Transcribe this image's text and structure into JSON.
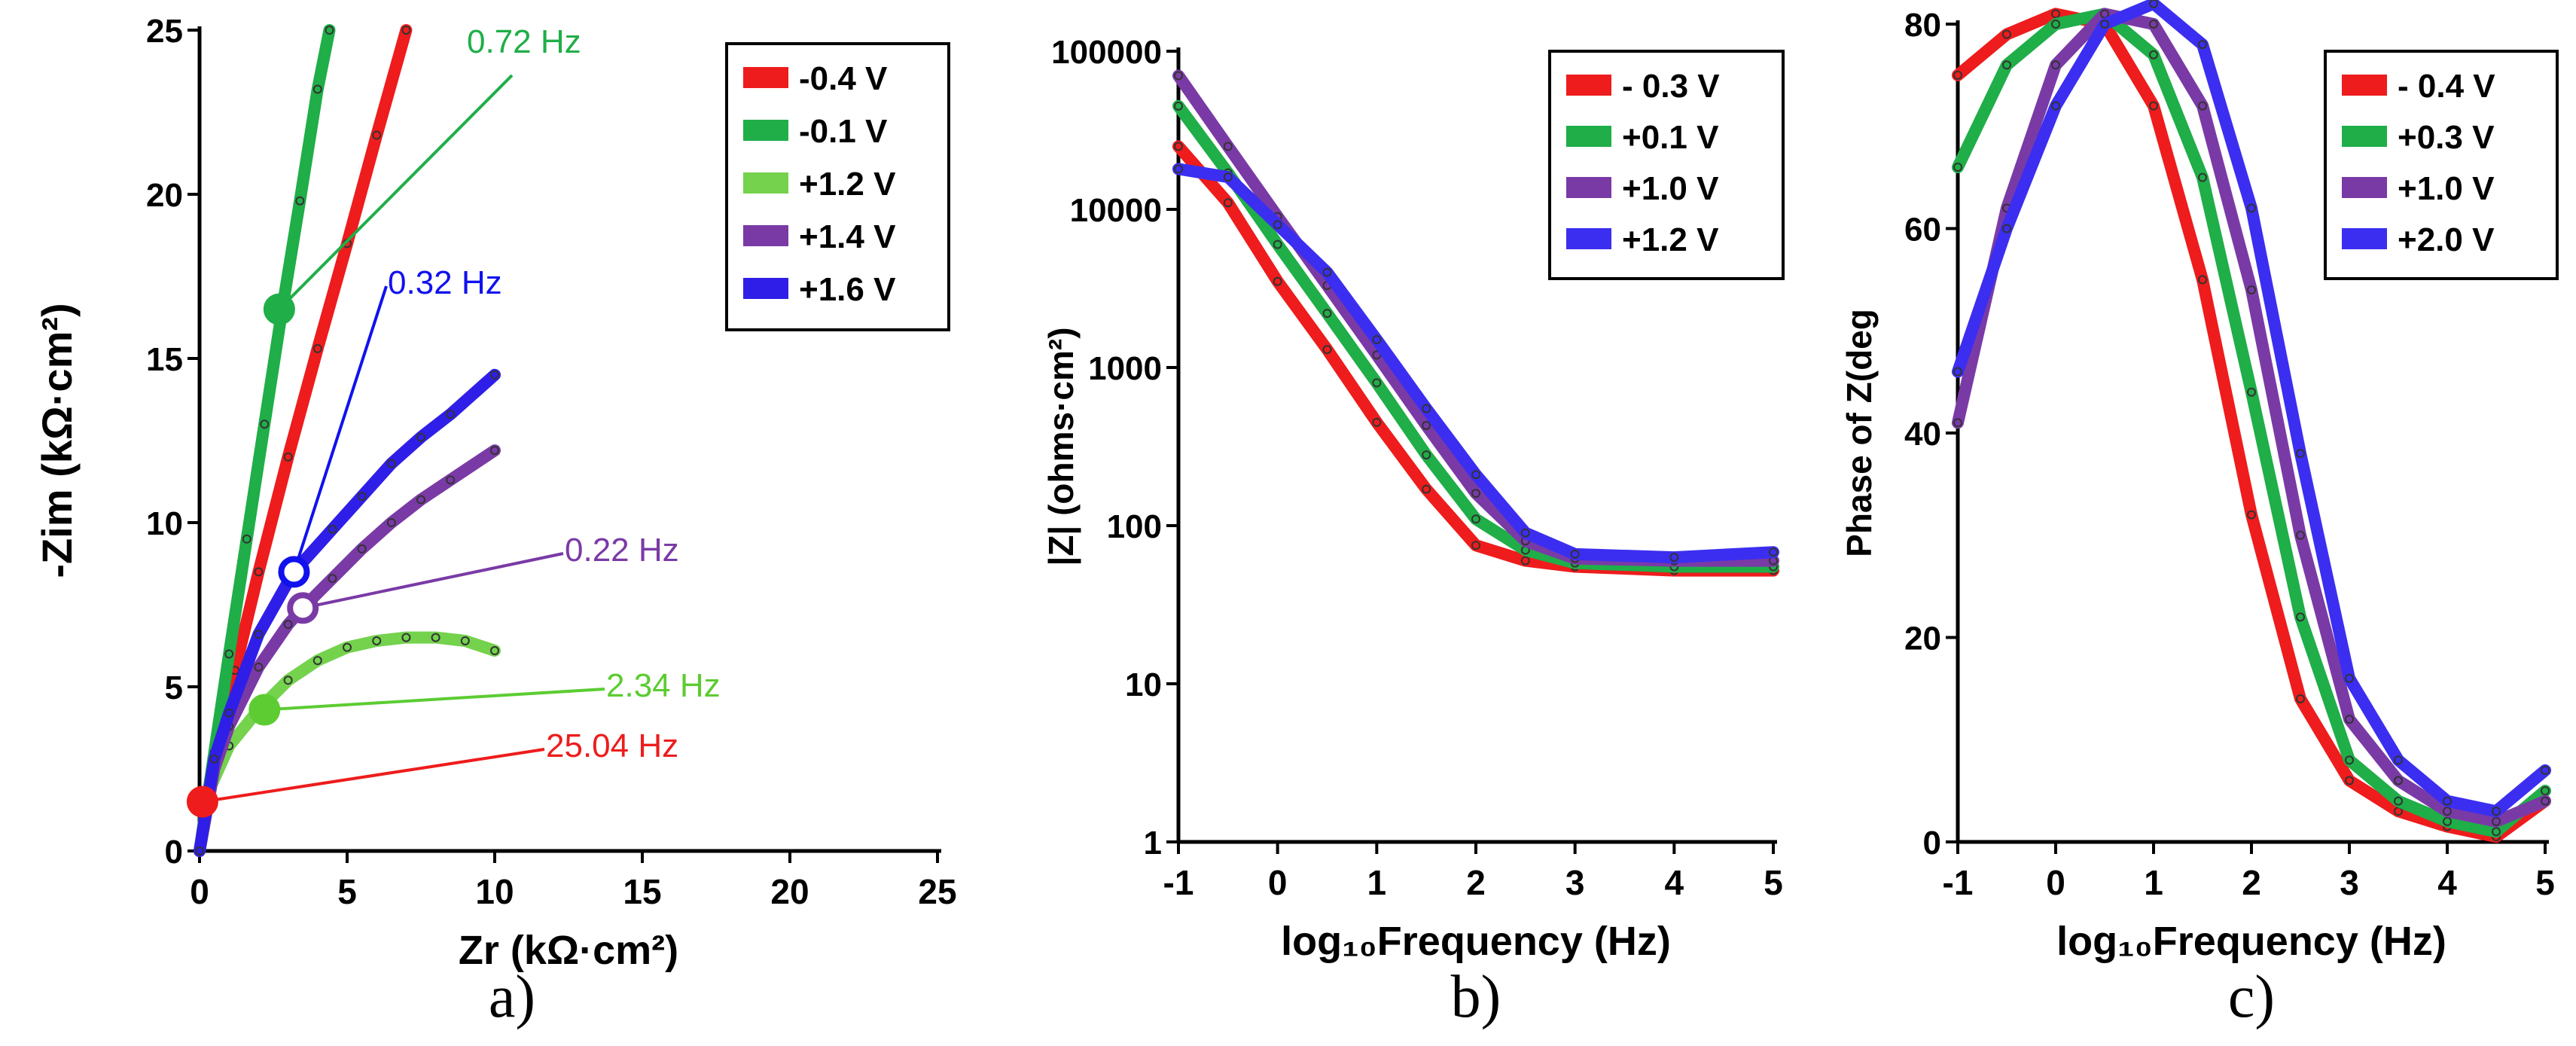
{
  "chart_data": [
    {
      "type": "line",
      "panel_label": "a)",
      "xlabel": "Zr (kΩ·cm²)",
      "ylabel": "-Zim (kΩ·cm²)",
      "xlim": [
        0,
        25
      ],
      "ylim": [
        0,
        25
      ],
      "xticks": [
        "0",
        "5",
        "10",
        "15",
        "20",
        "25"
      ],
      "yticks": [
        "0",
        "5",
        "10",
        "15",
        "20",
        "25"
      ],
      "legend_position": "top-right",
      "series": [
        {
          "name": "-0.4 V",
          "color": "#ee1c1c",
          "x": [
            0,
            0.5,
            1.2,
            2.0,
            3.0,
            4.0,
            5.0,
            6.0,
            7.0
          ],
          "y": [
            0,
            2.5,
            5.5,
            8.5,
            12.0,
            15.3,
            18.5,
            21.8,
            25.0
          ]
        },
        {
          "name": "-0.1 V",
          "color": "#1fae48",
          "x": [
            0,
            0.5,
            1.0,
            1.6,
            2.2,
            2.8,
            3.4,
            4.0,
            4.4
          ],
          "y": [
            0,
            3.0,
            6.0,
            9.5,
            13.0,
            16.5,
            19.8,
            23.2,
            25.0
          ]
        },
        {
          "name": "+1.2 V",
          "color": "#74d24d",
          "x": [
            0,
            0.4,
            1.0,
            2.0,
            3.0,
            4.0,
            5.0,
            6.0,
            7.0,
            8.0,
            9.0,
            10.0
          ],
          "y": [
            0,
            2.0,
            3.2,
            4.3,
            5.2,
            5.8,
            6.2,
            6.4,
            6.5,
            6.5,
            6.4,
            6.1
          ]
        },
        {
          "name": "+1.4 V",
          "color": "#7a3aa6",
          "x": [
            0,
            0.5,
            1.0,
            2.0,
            3.0,
            3.5,
            4.5,
            5.5,
            6.5,
            7.5,
            8.5,
            10.0
          ],
          "y": [
            0,
            2.5,
            3.8,
            5.6,
            6.9,
            7.4,
            8.3,
            9.2,
            10.0,
            10.7,
            11.3,
            12.2
          ]
        },
        {
          "name": "+1.6 V",
          "color": "#2f1ee8",
          "x": [
            0,
            0.5,
            1.0,
            2.0,
            3.0,
            3.3,
            4.5,
            5.5,
            6.5,
            7.5,
            8.5,
            10.0
          ],
          "y": [
            0,
            2.8,
            4.2,
            6.6,
            8.2,
            8.6,
            9.8,
            10.8,
            11.8,
            12.6,
            13.3,
            14.5
          ]
        }
      ],
      "markers": [
        {
          "label": "0.72  Hz",
          "color": "#1fae48",
          "x": 2.7,
          "y": 16.5
        },
        {
          "label": "0.32  Hz",
          "color": "#1111ee",
          "x": 3.2,
          "y": 8.5
        },
        {
          "label": "0.22 Hz",
          "color": "#7a3aa6",
          "x": 3.5,
          "y": 7.4
        },
        {
          "label": "2.34  Hz",
          "color": "#5ccc32",
          "x": 2.2,
          "y": 4.3
        },
        {
          "label": "25.04 Hz",
          "color": "#ee1c1c",
          "x": 0.1,
          "y": 1.5
        }
      ]
    },
    {
      "type": "line",
      "panel_label": "b)",
      "xlabel": "log₁₀Frequency (Hz)",
      "ylabel": "|Z| (ohms·cm²)",
      "yscale": "log",
      "xlim": [
        -1,
        5
      ],
      "ylim": [
        1,
        100000
      ],
      "xticks": [
        "-1",
        "0",
        "1",
        "2",
        "3",
        "4",
        "5"
      ],
      "yticks": [
        "1",
        "10",
        "100",
        "1000",
        "10000",
        "100000"
      ],
      "legend_position": "top-right",
      "series": [
        {
          "name": "- 0.3 V",
          "color": "#ee1c1c",
          "x": [
            -1,
            -0.5,
            0,
            0.5,
            1,
            1.5,
            2,
            2.5,
            3,
            4,
            5
          ],
          "y": [
            25000,
            11000,
            3500,
            1300,
            450,
            170,
            75,
            60,
            55,
            52,
            52
          ]
        },
        {
          "name": "+0.1 V",
          "color": "#1fae48",
          "x": [
            -1,
            -0.5,
            0,
            0.5,
            1,
            1.5,
            2,
            2.5,
            3,
            4,
            5
          ],
          "y": [
            45000,
            17000,
            6000,
            2200,
            800,
            280,
            110,
            70,
            58,
            55,
            55
          ]
        },
        {
          "name": "+1.0 V",
          "color": "#7a3aa6",
          "x": [
            -1,
            -0.5,
            0,
            0.5,
            1,
            1.5,
            2,
            2.5,
            3,
            4,
            5
          ],
          "y": [
            70000,
            25000,
            9000,
            3300,
            1200,
            430,
            160,
            80,
            62,
            60,
            60
          ]
        },
        {
          "name": "+1.2 V",
          "color": "#3b2ef0",
          "x": [
            -1,
            -0.5,
            0,
            0.5,
            1,
            1.5,
            2,
            2.5,
            3,
            4,
            5
          ],
          "y": [
            18000,
            16000,
            8000,
            4000,
            1500,
            550,
            210,
            90,
            66,
            63,
            68
          ]
        }
      ]
    },
    {
      "type": "line",
      "panel_label": "c)",
      "xlabel": "log₁₀Frequency (Hz)",
      "ylabel": "Phase of Z(deg",
      "xlim": [
        -1,
        5
      ],
      "ylim": [
        0,
        80
      ],
      "xticks": [
        "-1",
        "0",
        "1",
        "2",
        "3",
        "4",
        "5"
      ],
      "yticks": [
        "0",
        "20",
        "40",
        "60",
        "80"
      ],
      "legend_position": "top-right",
      "series": [
        {
          "name": "- 0.4 V",
          "color": "#ee1c1c",
          "x": [
            -1,
            -0.5,
            0,
            0.5,
            1,
            1.5,
            2,
            2.5,
            3,
            3.5,
            4,
            4.5,
            5
          ],
          "y": [
            75,
            79,
            81,
            80,
            72,
            55,
            32,
            14,
            6,
            3,
            1.5,
            0.5,
            4
          ]
        },
        {
          "name": "+0.3 V",
          "color": "#1fae48",
          "x": [
            -1,
            -0.5,
            0,
            0.5,
            1,
            1.5,
            2,
            2.5,
            3,
            3.5,
            4,
            4.5,
            5
          ],
          "y": [
            66,
            76,
            80,
            81,
            77,
            65,
            44,
            22,
            8,
            4,
            2,
            1,
            5
          ]
        },
        {
          "name": "+1.0 V",
          "color": "#7a3aa6",
          "x": [
            -1,
            -0.5,
            0,
            0.5,
            1,
            1.5,
            2,
            2.5,
            3,
            3.5,
            4,
            4.5,
            5
          ],
          "y": [
            41,
            62,
            76,
            81,
            80,
            72,
            54,
            30,
            12,
            6,
            3,
            2,
            4
          ]
        },
        {
          "name": "+2.0 V",
          "color": "#3b2ef0",
          "x": [
            -1,
            -0.5,
            0,
            0.5,
            1,
            1.5,
            2,
            2.5,
            3,
            3.5,
            4,
            4.5,
            5
          ],
          "y": [
            46,
            60,
            72,
            80,
            82,
            78,
            62,
            38,
            16,
            8,
            4,
            3,
            7
          ]
        }
      ]
    }
  ]
}
